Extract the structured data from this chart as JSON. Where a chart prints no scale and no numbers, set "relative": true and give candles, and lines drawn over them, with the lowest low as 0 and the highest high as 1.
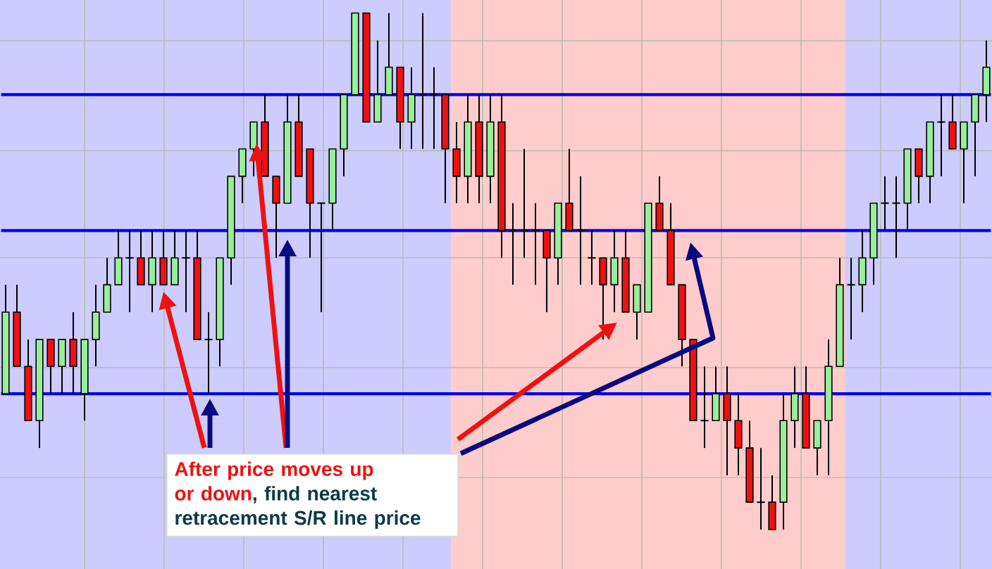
{
  "chart_data": {
    "type": "candlestick",
    "relative": true,
    "grid": true,
    "categories": [
      null,
      null,
      null,
      null,
      null,
      null,
      null,
      null,
      null,
      null,
      null,
      null,
      null,
      null,
      null,
      null,
      null,
      null,
      null,
      null,
      null,
      null,
      null,
      null,
      null,
      null,
      null,
      null,
      null,
      null,
      null,
      null,
      null,
      null,
      null,
      null,
      null,
      null,
      null,
      null,
      null,
      null,
      null,
      null,
      null,
      null,
      null,
      null,
      null,
      null,
      null,
      null,
      null,
      null,
      null,
      null,
      null,
      null,
      null,
      null,
      null,
      null,
      null,
      null,
      null,
      null,
      null,
      null,
      null,
      null,
      null,
      null,
      null,
      null,
      null,
      null,
      null,
      null,
      null,
      null,
      null,
      null,
      null,
      null,
      null,
      null,
      null,
      null
    ],
    "ohlc": [
      [
        0.263,
        0.474,
        0.263,
        0.421
      ],
      [
        0.421,
        0.474,
        0.316,
        0.316
      ],
      [
        0.316,
        0.368,
        0.211,
        0.211
      ],
      [
        0.211,
        0.368,
        0.158,
        0.368
      ],
      [
        0.368,
        0.368,
        0.263,
        0.316
      ],
      [
        0.316,
        0.368,
        0.263,
        0.368
      ],
      [
        0.368,
        0.421,
        0.263,
        0.316
      ],
      [
        0.263,
        0.368,
        0.211,
        0.368
      ],
      [
        0.368,
        0.474,
        0.316,
        0.421
      ],
      [
        0.421,
        0.526,
        0.421,
        0.474
      ],
      [
        0.474,
        0.579,
        0.474,
        0.526
      ],
      [
        0.526,
        0.579,
        0.421,
        0.526
      ],
      [
        0.526,
        0.579,
        0.474,
        0.474
      ],
      [
        0.474,
        0.579,
        0.421,
        0.526
      ],
      [
        0.526,
        0.579,
        0.474,
        0.474
      ],
      [
        0.474,
        0.579,
        0.474,
        0.526
      ],
      [
        0.526,
        0.579,
        0.421,
        0.526
      ],
      [
        0.526,
        0.579,
        0.368,
        0.368
      ],
      [
        0.368,
        0.421,
        0.263,
        0.368
      ],
      [
        0.368,
        0.526,
        0.316,
        0.526
      ],
      [
        0.526,
        0.684,
        0.474,
        0.684
      ],
      [
        0.684,
        0.737,
        0.632,
        0.737
      ],
      [
        0.737,
        0.789,
        0.684,
        0.789
      ],
      [
        0.789,
        0.842,
        0.684,
        0.684
      ],
      [
        0.684,
        0.684,
        0.526,
        0.632
      ],
      [
        0.632,
        0.842,
        0.632,
        0.789
      ],
      [
        0.789,
        0.842,
        0.684,
        0.684
      ],
      [
        0.737,
        0.737,
        0.526,
        0.632
      ],
      [
        0.632,
        0.632,
        0.421,
        0.632
      ],
      [
        0.632,
        0.737,
        0.579,
        0.737
      ],
      [
        0.737,
        0.842,
        0.684,
        0.842
      ],
      [
        0.842,
        1,
        0.842,
        1
      ],
      [
        1,
        1,
        0.789,
        0.789
      ],
      [
        0.789,
        0.947,
        0.789,
        0.842
      ],
      [
        0.842,
        1,
        0.842,
        0.895
      ],
      [
        0.895,
        0.895,
        0.737,
        0.789
      ],
      [
        0.789,
        0.895,
        0.737,
        0.842
      ],
      [
        0.842,
        1,
        0.737,
        0.842
      ],
      [
        0.842,
        0.895,
        0.737,
        0.842
      ],
      [
        0.842,
        0.842,
        0.632,
        0.737
      ],
      [
        0.737,
        0.789,
        0.632,
        0.684
      ],
      [
        0.684,
        0.842,
        0.632,
        0.789
      ],
      [
        0.789,
        0.842,
        0.632,
        0.684
      ],
      [
        0.684,
        0.842,
        0.632,
        0.789
      ],
      [
        0.789,
        0.842,
        0.526,
        0.579
      ],
      [
        0.579,
        0.632,
        0.474,
        0.579
      ],
      [
        0.579,
        0.737,
        0.526,
        0.579
      ],
      [
        0.579,
        0.632,
        0.474,
        0.579
      ],
      [
        0.579,
        0.579,
        0.421,
        0.526
      ],
      [
        0.526,
        0.632,
        0.474,
        0.632
      ],
      [
        0.632,
        0.737,
        0.579,
        0.579
      ],
      [
        0.579,
        0.684,
        0.474,
        0.579
      ],
      [
        0.526,
        0.579,
        0.474,
        0.526
      ],
      [
        0.526,
        0.526,
        0.368,
        0.474
      ],
      [
        0.474,
        0.579,
        0.421,
        0.526
      ],
      [
        0.526,
        0.579,
        0.421,
        0.421
      ],
      [
        0.421,
        0.474,
        0.368,
        0.474
      ],
      [
        0.421,
        0.632,
        0.421,
        0.632
      ],
      [
        0.632,
        0.684,
        0.579,
        0.579
      ],
      [
        0.579,
        0.632,
        0.474,
        0.474
      ],
      [
        0.474,
        0.474,
        0.316,
        0.368
      ],
      [
        0.368,
        0.368,
        0.211,
        0.211
      ],
      [
        0.211,
        0.316,
        0.158,
        0.211
      ],
      [
        0.211,
        0.316,
        0.211,
        0.263
      ],
      [
        0.263,
        0.316,
        0.105,
        0.211
      ],
      [
        0.211,
        0.263,
        0.105,
        0.158
      ],
      [
        0.158,
        0.211,
        0.053,
        0.053
      ],
      [
        0.053,
        0.158,
        0,
        0.053
      ],
      [
        0.053,
        0.105,
        0,
        0
      ],
      [
        0.053,
        0.263,
        0,
        0.211
      ],
      [
        0.211,
        0.316,
        0.158,
        0.263
      ],
      [
        0.263,
        0.316,
        0.158,
        0.158
      ],
      [
        0.158,
        0.211,
        0.105,
        0.211
      ],
      [
        0.211,
        0.368,
        0.105,
        0.316
      ],
      [
        0.316,
        0.526,
        0.316,
        0.474
      ],
      [
        0.474,
        0.526,
        0.368,
        0.474
      ],
      [
        0.474,
        0.579,
        0.421,
        0.526
      ],
      [
        0.526,
        0.632,
        0.474,
        0.632
      ],
      [
        0.632,
        0.684,
        0.579,
        0.632
      ],
      [
        0.632,
        0.684,
        0.526,
        0.632
      ],
      [
        0.632,
        0.737,
        0.579,
        0.737
      ],
      [
        0.737,
        0.737,
        0.632,
        0.684
      ],
      [
        0.684,
        0.789,
        0.632,
        0.789
      ],
      [
        0.789,
        0.842,
        0.684,
        0.789
      ],
      [
        0.789,
        0.842,
        0.737,
        0.737
      ],
      [
        0.737,
        0.789,
        0.632,
        0.789
      ],
      [
        0.789,
        0.842,
        0.684,
        0.842
      ],
      [
        0.842,
        0.947,
        0.789,
        0.895
      ]
    ],
    "ref_lines": [
      {
        "axis": "y",
        "value": 0.263,
        "color": "#0000ee"
      },
      {
        "axis": "y",
        "value": 0.579,
        "color": "#0000ee"
      },
      {
        "axis": "y",
        "value": 0.842,
        "color": "#0000ee"
      }
    ],
    "annotations": [
      "After price moves up or down",
      ", find nearest retracement S/R line price"
    ]
  }
}
